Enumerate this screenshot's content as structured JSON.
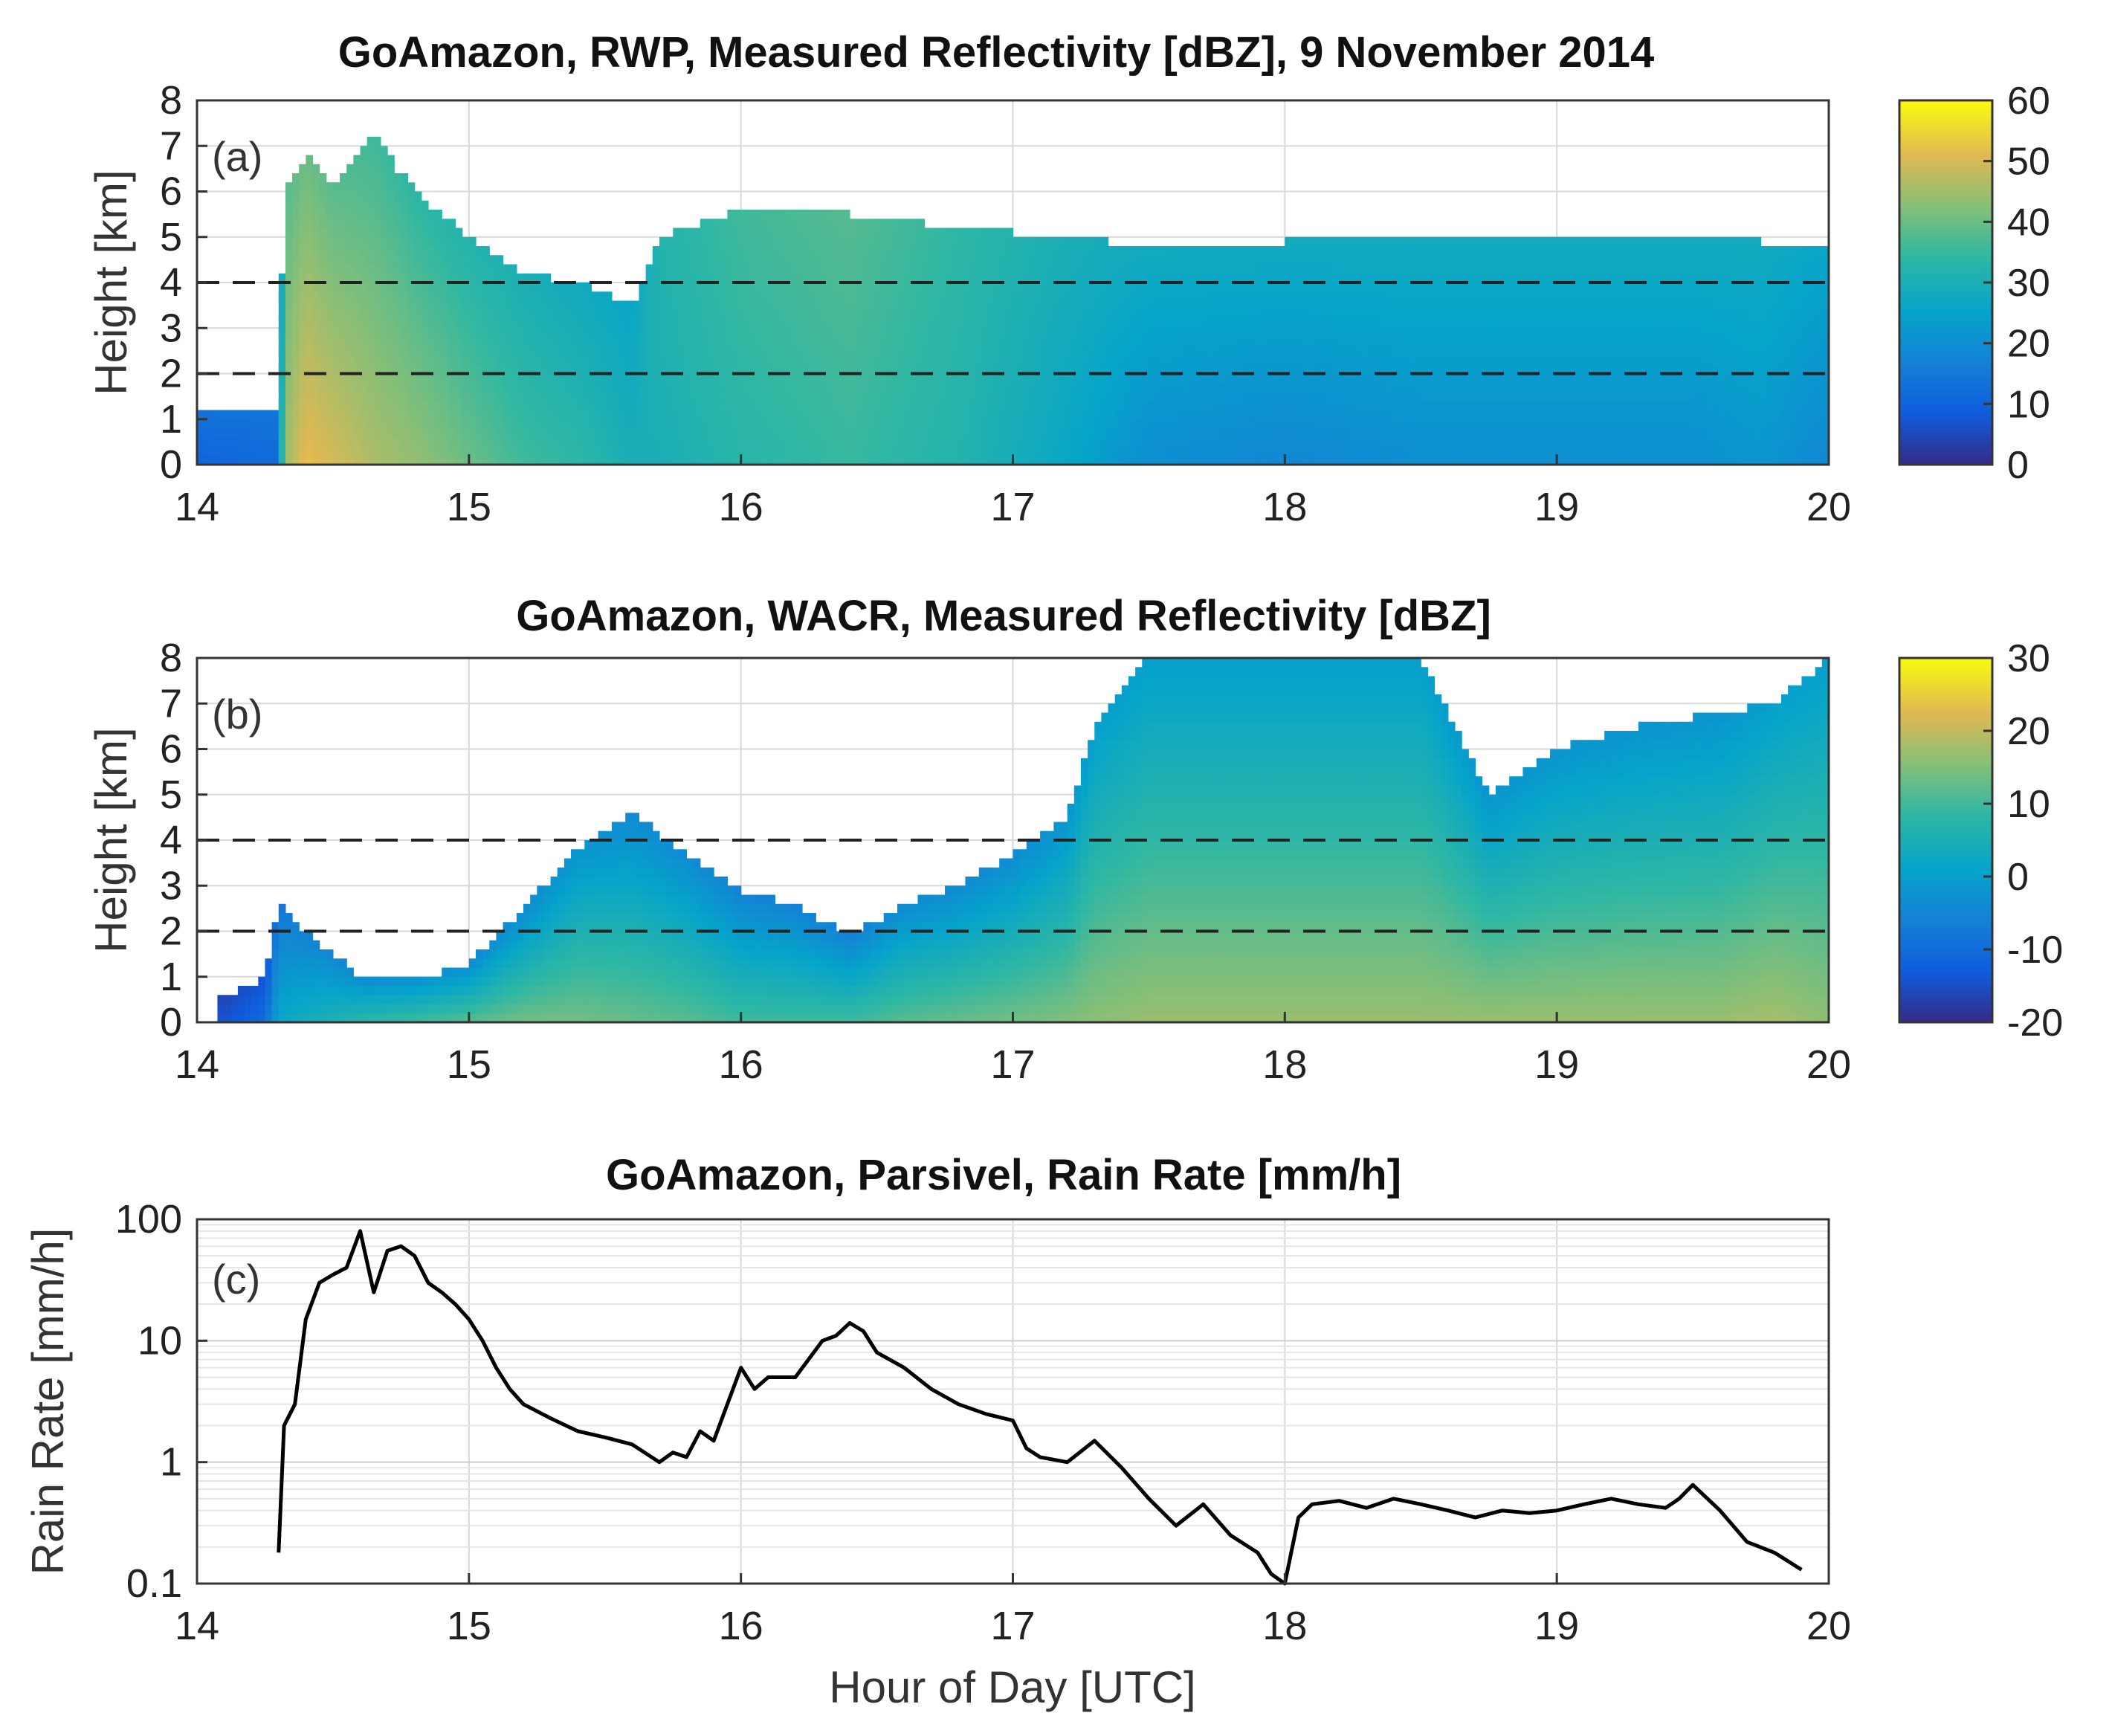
{
  "chart_data": [
    {
      "panel": "(a)",
      "type": "heatmap",
      "title": "GoAmazon, RWP, Measured Reflectivity [dBZ], 9 November 2014",
      "xlabel": "",
      "ylabel": "Height [km]",
      "xlim": [
        14,
        20
      ],
      "ylim": [
        0,
        8
      ],
      "xticks": [
        "14",
        "15",
        "16",
        "17",
        "18",
        "19",
        "20"
      ],
      "yticks": [
        "0",
        "1",
        "2",
        "3",
        "4",
        "5",
        "6",
        "7",
        "8"
      ],
      "colorbar": {
        "min": 0,
        "max": 60,
        "ticks": [
          "0",
          "10",
          "20",
          "30",
          "40",
          "50",
          "60"
        ]
      },
      "reference_lines_km": [
        2,
        4
      ],
      "echo_columns": [
        {
          "t": 14.0,
          "top": 1.3,
          "v_low": 10,
          "v_high": 14
        },
        {
          "t": 14.3,
          "top": 1.2,
          "v_low": 12,
          "v_high": 14
        },
        {
          "t": 14.32,
          "top": 6.0,
          "v_low": 44,
          "v_high": 38
        },
        {
          "t": 14.4,
          "top": 6.8,
          "v_low": 52,
          "v_high": 40
        },
        {
          "t": 14.5,
          "top": 6.2,
          "v_low": 50,
          "v_high": 38
        },
        {
          "t": 14.65,
          "top": 7.2,
          "v_low": 46,
          "v_high": 36
        },
        {
          "t": 14.8,
          "top": 6.0,
          "v_low": 44,
          "v_high": 34
        },
        {
          "t": 15.0,
          "top": 5.0,
          "v_low": 40,
          "v_high": 32
        },
        {
          "t": 15.2,
          "top": 4.2,
          "v_low": 36,
          "v_high": 30
        },
        {
          "t": 15.4,
          "top": 4.0,
          "v_low": 34,
          "v_high": 28
        },
        {
          "t": 15.6,
          "top": 3.5,
          "v_low": 30,
          "v_high": 26
        },
        {
          "t": 15.7,
          "top": 5.0,
          "v_low": 30,
          "v_high": 32
        },
        {
          "t": 16.0,
          "top": 5.6,
          "v_low": 33,
          "v_high": 36
        },
        {
          "t": 16.4,
          "top": 5.5,
          "v_low": 35,
          "v_high": 38
        },
        {
          "t": 16.8,
          "top": 5.2,
          "v_low": 32,
          "v_high": 34
        },
        {
          "t": 17.2,
          "top": 5.0,
          "v_low": 26,
          "v_high": 30
        },
        {
          "t": 17.5,
          "top": 4.8,
          "v_low": 20,
          "v_high": 28
        },
        {
          "t": 18.0,
          "top": 4.9,
          "v_low": 18,
          "v_high": 28
        },
        {
          "t": 18.5,
          "top": 4.9,
          "v_low": 20,
          "v_high": 28
        },
        {
          "t": 19.0,
          "top": 4.9,
          "v_low": 20,
          "v_high": 28
        },
        {
          "t": 19.5,
          "top": 4.9,
          "v_low": 20,
          "v_high": 28
        },
        {
          "t": 19.75,
          "top": 4.9,
          "v_low": 22,
          "v_high": 28
        },
        {
          "t": 20.0,
          "top": 4.8,
          "v_low": 18,
          "v_high": 26
        }
      ]
    },
    {
      "panel": "(b)",
      "type": "heatmap",
      "title": "GoAmazon, WACR, Measured Reflectivity [dBZ]",
      "xlabel": "",
      "ylabel": "Height [km]",
      "xlim": [
        14,
        20
      ],
      "ylim": [
        0,
        8
      ],
      "xticks": [
        "14",
        "15",
        "16",
        "17",
        "18",
        "19",
        "20"
      ],
      "yticks": [
        "0",
        "1",
        "2",
        "3",
        "4",
        "5",
        "6",
        "7",
        "8"
      ],
      "colorbar": {
        "min": -20,
        "max": 30,
        "ticks": [
          "-20",
          "-10",
          "0",
          "10",
          "20",
          "30"
        ]
      },
      "reference_lines_km": [
        2,
        4
      ],
      "echo_columns": [
        {
          "t": 14.1,
          "top": 0.5,
          "v_low": -14,
          "v_high": -16
        },
        {
          "t": 14.25,
          "top": 1.0,
          "v_low": -10,
          "v_high": -14
        },
        {
          "t": 14.3,
          "top": 2.6,
          "v_low": 2,
          "v_high": -8
        },
        {
          "t": 14.4,
          "top": 2.0,
          "v_low": 4,
          "v_high": -6
        },
        {
          "t": 14.6,
          "top": 1.0,
          "v_low": 8,
          "v_high": -4
        },
        {
          "t": 14.8,
          "top": 0.9,
          "v_low": 10,
          "v_high": -2
        },
        {
          "t": 15.0,
          "top": 1.3,
          "v_low": 12,
          "v_high": -4
        },
        {
          "t": 15.2,
          "top": 2.5,
          "v_low": 14,
          "v_high": -4
        },
        {
          "t": 15.4,
          "top": 3.8,
          "v_low": 14,
          "v_high": -2
        },
        {
          "t": 15.6,
          "top": 4.6,
          "v_low": 13,
          "v_high": -4
        },
        {
          "t": 15.8,
          "top": 3.7,
          "v_low": 12,
          "v_high": -4
        },
        {
          "t": 16.0,
          "top": 2.9,
          "v_low": 10,
          "v_high": -6
        },
        {
          "t": 16.2,
          "top": 2.6,
          "v_low": 10,
          "v_high": -6
        },
        {
          "t": 16.4,
          "top": 1.9,
          "v_low": 10,
          "v_high": -6
        },
        {
          "t": 16.6,
          "top": 2.6,
          "v_low": 12,
          "v_high": -4
        },
        {
          "t": 16.8,
          "top": 3.0,
          "v_low": 13,
          "v_high": -4
        },
        {
          "t": 17.0,
          "top": 3.7,
          "v_low": 14,
          "v_high": -4
        },
        {
          "t": 17.2,
          "top": 4.5,
          "v_low": 15,
          "v_high": -2
        },
        {
          "t": 17.3,
          "top": 6.5,
          "v_low": 16,
          "v_high": 0
        },
        {
          "t": 17.5,
          "top": 8.0,
          "v_low": 17,
          "v_high": 0
        },
        {
          "t": 18.0,
          "top": 8.0,
          "v_low": 17,
          "v_high": 0
        },
        {
          "t": 18.5,
          "top": 8.0,
          "v_low": 17,
          "v_high": 0
        },
        {
          "t": 18.75,
          "top": 5.0,
          "v_low": 17,
          "v_high": -2
        },
        {
          "t": 19.0,
          "top": 6.0,
          "v_low": 17,
          "v_high": -2
        },
        {
          "t": 19.3,
          "top": 6.5,
          "v_low": 17,
          "v_high": -2
        },
        {
          "t": 19.6,
          "top": 6.8,
          "v_low": 17,
          "v_high": -2
        },
        {
          "t": 19.8,
          "top": 7.0,
          "v_low": 18,
          "v_high": 0
        },
        {
          "t": 20.0,
          "top": 8.0,
          "v_low": 16,
          "v_high": 0
        }
      ]
    },
    {
      "panel": "(c)",
      "type": "line",
      "title": "GoAmazon, Parsivel, Rain Rate [mm/h]",
      "xlabel": "Hour of Day [UTC]",
      "ylabel": "Rain Rate [mm/h]",
      "yscale": "log",
      "xlim": [
        14,
        20
      ],
      "ylim": [
        0.1,
        100
      ],
      "xticks": [
        "14",
        "15",
        "16",
        "17",
        "18",
        "19",
        "20"
      ],
      "yticks": [
        "0.1",
        "1",
        "10",
        "100"
      ],
      "x": [
        14.3,
        14.32,
        14.36,
        14.4,
        14.45,
        14.5,
        14.55,
        14.6,
        14.65,
        14.7,
        14.75,
        14.8,
        14.85,
        14.9,
        14.95,
        15.0,
        15.05,
        15.1,
        15.15,
        15.2,
        15.3,
        15.4,
        15.5,
        15.6,
        15.7,
        15.75,
        15.8,
        15.85,
        15.9,
        15.95,
        16.0,
        16.05,
        16.1,
        16.2,
        16.3,
        16.35,
        16.4,
        16.45,
        16.5,
        16.6,
        16.7,
        16.8,
        16.9,
        17.0,
        17.05,
        17.1,
        17.2,
        17.3,
        17.4,
        17.5,
        17.6,
        17.7,
        17.8,
        17.9,
        17.95,
        18.0,
        18.05,
        18.1,
        18.2,
        18.3,
        18.4,
        18.5,
        18.6,
        18.7,
        18.8,
        18.9,
        19.0,
        19.1,
        19.2,
        19.3,
        19.4,
        19.45,
        19.5,
        19.6,
        19.7,
        19.8,
        19.9
      ],
      "y": [
        0.18,
        2.0,
        3.0,
        15,
        30,
        35,
        40,
        80,
        25,
        55,
        60,
        50,
        30,
        25,
        20,
        15,
        10,
        6,
        4,
        3,
        2.3,
        1.8,
        1.6,
        1.4,
        1.0,
        1.2,
        1.1,
        1.8,
        1.5,
        3.0,
        6.0,
        4.0,
        5.0,
        5.0,
        10,
        11,
        14,
        12,
        8.0,
        6.0,
        4.0,
        3.0,
        2.5,
        2.2,
        1.3,
        1.1,
        1.0,
        1.5,
        0.9,
        0.5,
        0.3,
        0.45,
        0.25,
        0.18,
        0.12,
        0.1,
        0.35,
        0.45,
        0.48,
        0.42,
        0.5,
        0.45,
        0.4,
        0.35,
        0.4,
        0.38,
        0.4,
        0.45,
        0.5,
        0.45,
        0.42,
        0.5,
        0.65,
        0.4,
        0.22,
        0.18,
        0.13
      ]
    }
  ]
}
